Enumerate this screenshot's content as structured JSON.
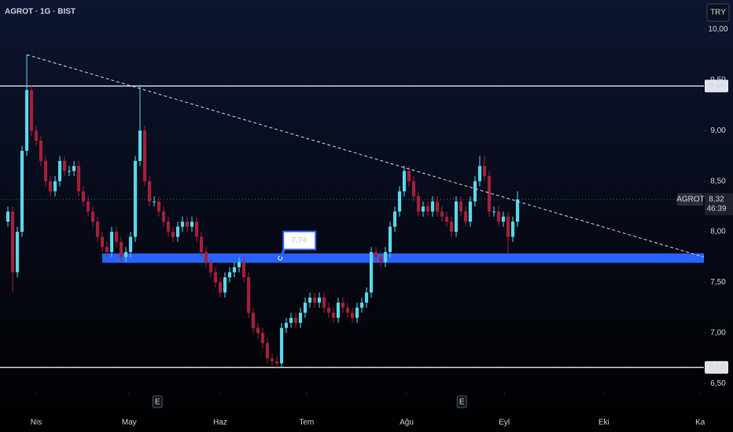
{
  "chart_data": {
    "type": "candlestick",
    "title": "AGROT · 1G · BIST",
    "currency": "TRY",
    "x": [
      0,
      1,
      2,
      3,
      4,
      5,
      6,
      7,
      8,
      9,
      10,
      11,
      12,
      13,
      14,
      15,
      16,
      17,
      18,
      19,
      20,
      21,
      22,
      23,
      24,
      25,
      26,
      27,
      28,
      29,
      30,
      31,
      32,
      33,
      34,
      35,
      36,
      37,
      38,
      39,
      40,
      41,
      42,
      43,
      44,
      45,
      46,
      47,
      48,
      49,
      50,
      51,
      52,
      53,
      54,
      55,
      56,
      57,
      58,
      59,
      60,
      61,
      62,
      63,
      64,
      65,
      66,
      67,
      68,
      69,
      70,
      71,
      72,
      73,
      74,
      75,
      76,
      77,
      78,
      79,
      80,
      81,
      82,
      83,
      84,
      85,
      86,
      87,
      88,
      89,
      90,
      91,
      92,
      93,
      94,
      95,
      96,
      97,
      98,
      99,
      100,
      101,
      102,
      103,
      104,
      105,
      106,
      107,
      108
    ],
    "open": [
      8.1,
      8.2,
      7.6,
      8.0,
      8.8,
      9.4,
      9.0,
      8.9,
      8.7,
      8.5,
      8.4,
      8.5,
      8.7,
      8.6,
      8.6,
      8.65,
      8.4,
      8.3,
      8.2,
      8.1,
      7.95,
      7.85,
      7.8,
      8.0,
      7.9,
      7.75,
      7.8,
      7.95,
      8.7,
      9.0,
      8.5,
      8.3,
      8.3,
      8.2,
      8.1,
      8.0,
      7.95,
      8.05,
      8.1,
      8.05,
      8.1,
      7.95,
      7.8,
      7.7,
      7.6,
      7.5,
      7.4,
      7.55,
      7.6,
      7.65,
      7.7,
      7.55,
      7.2,
      7.05,
      7.0,
      6.9,
      6.75,
      6.72,
      6.7,
      7.05,
      7.1,
      7.15,
      7.1,
      7.2,
      7.3,
      7.35,
      7.3,
      7.35,
      7.25,
      7.2,
      7.15,
      7.3,
      7.25,
      7.2,
      7.15,
      7.25,
      7.3,
      7.4,
      7.8,
      7.75,
      7.7,
      7.8,
      8.05,
      8.2,
      8.4,
      8.6,
      8.5,
      8.35,
      8.2,
      8.25,
      8.2,
      8.3,
      8.2,
      8.15,
      8.1,
      8.0,
      8.3,
      8.2,
      8.1,
      8.3,
      8.5,
      8.65,
      8.55,
      8.2,
      8.2,
      8.1,
      8.15,
      7.95,
      8.1
    ],
    "high": [
      8.25,
      8.25,
      8.05,
      8.85,
      9.75,
      9.45,
      9.05,
      8.95,
      8.75,
      8.55,
      8.55,
      8.75,
      8.75,
      8.65,
      8.7,
      8.7,
      8.45,
      8.35,
      8.25,
      8.15,
      8.0,
      7.9,
      8.05,
      8.05,
      7.95,
      7.85,
      8.0,
      8.75,
      9.45,
      9.05,
      8.55,
      8.35,
      8.35,
      8.25,
      8.15,
      8.05,
      8.1,
      8.15,
      8.15,
      8.15,
      8.15,
      8.0,
      7.85,
      7.75,
      7.65,
      7.55,
      7.6,
      7.65,
      7.7,
      7.75,
      7.75,
      7.6,
      7.25,
      7.1,
      7.05,
      6.95,
      6.8,
      6.77,
      7.1,
      7.15,
      7.2,
      7.2,
      7.25,
      7.35,
      7.4,
      7.4,
      7.4,
      7.4,
      7.3,
      7.25,
      7.35,
      7.35,
      7.3,
      7.25,
      7.3,
      7.35,
      7.45,
      7.85,
      7.85,
      7.8,
      7.85,
      8.1,
      8.25,
      8.45,
      8.65,
      8.65,
      8.55,
      8.4,
      8.3,
      8.3,
      8.35,
      8.35,
      8.25,
      8.2,
      8.15,
      8.35,
      8.35,
      8.25,
      8.35,
      8.55,
      8.75,
      8.75,
      8.6,
      8.25,
      8.25,
      8.2,
      8.2,
      8.15,
      8.4
    ],
    "low": [
      8.05,
      7.4,
      7.55,
      7.95,
      8.75,
      8.95,
      8.85,
      8.65,
      8.45,
      8.35,
      8.35,
      8.45,
      8.55,
      8.55,
      8.55,
      8.35,
      8.25,
      8.15,
      8.05,
      7.9,
      7.8,
      7.75,
      7.75,
      7.85,
      7.7,
      7.7,
      7.75,
      7.9,
      8.65,
      8.45,
      8.25,
      8.25,
      8.15,
      8.05,
      7.95,
      7.9,
      7.9,
      8.0,
      8.0,
      8.0,
      7.9,
      7.75,
      7.65,
      7.55,
      7.45,
      7.35,
      7.35,
      7.5,
      7.55,
      7.6,
      7.5,
      7.15,
      7.0,
      6.95,
      6.85,
      6.7,
      6.67,
      6.66,
      6.66,
      7.0,
      7.05,
      7.05,
      7.05,
      7.15,
      7.25,
      7.25,
      7.25,
      7.2,
      7.15,
      7.1,
      7.1,
      7.2,
      7.15,
      7.1,
      7.1,
      7.2,
      7.25,
      7.35,
      7.7,
      7.65,
      7.65,
      7.75,
      8.0,
      8.15,
      8.35,
      8.45,
      8.3,
      8.15,
      8.15,
      8.15,
      8.15,
      8.15,
      8.1,
      8.05,
      7.95,
      7.95,
      8.15,
      8.05,
      8.05,
      8.25,
      8.45,
      8.5,
      8.15,
      8.15,
      8.05,
      8.05,
      7.78,
      7.9,
      8.05
    ],
    "close": [
      8.2,
      7.6,
      8.0,
      8.8,
      9.4,
      9.0,
      8.9,
      8.7,
      8.5,
      8.4,
      8.5,
      8.7,
      8.6,
      8.6,
      8.65,
      8.4,
      8.3,
      8.2,
      8.1,
      7.95,
      7.85,
      7.8,
      8.0,
      7.9,
      7.75,
      7.8,
      7.95,
      8.7,
      9.0,
      8.5,
      8.3,
      8.3,
      8.2,
      8.1,
      8.0,
      7.95,
      8.05,
      8.1,
      8.05,
      8.1,
      7.95,
      7.8,
      7.7,
      7.6,
      7.5,
      7.4,
      7.55,
      7.6,
      7.65,
      7.7,
      7.55,
      7.2,
      7.05,
      7.0,
      6.9,
      6.75,
      6.72,
      6.7,
      7.05,
      7.1,
      7.15,
      7.1,
      7.2,
      7.3,
      7.35,
      7.3,
      7.35,
      7.25,
      7.2,
      7.15,
      7.3,
      7.25,
      7.2,
      7.15,
      7.25,
      7.3,
      7.4,
      7.8,
      7.75,
      7.7,
      7.8,
      8.05,
      8.2,
      8.4,
      8.6,
      8.5,
      8.35,
      8.2,
      8.25,
      8.2,
      8.3,
      8.2,
      8.15,
      8.1,
      8.0,
      8.3,
      8.2,
      8.1,
      8.3,
      8.5,
      8.65,
      8.55,
      8.2,
      8.2,
      8.1,
      8.15,
      7.95,
      8.1,
      8.32
    ],
    "up_color": "#5ad6e8",
    "down_color": "#a3203a",
    "xlim": [
      -1.67,
      147.5
    ],
    "xticks": [
      {
        "value": 6,
        "label": "Nis"
      },
      {
        "value": 25.7,
        "label": "May"
      },
      {
        "value": 45,
        "label": "Haz"
      },
      {
        "value": 63.3,
        "label": "Tem"
      },
      {
        "value": 84.5,
        "label": "Ağu"
      },
      {
        "value": 105.2,
        "label": "Eyl"
      },
      {
        "value": 126.3,
        "label": "Eki"
      },
      {
        "value": 146.7,
        "label": "Ka"
      }
    ],
    "ylim": [
      6.41,
      10.29
    ],
    "yticks": [
      {
        "value": 6.5,
        "label": "6,50"
      },
      {
        "value": 7,
        "label": "7,00"
      },
      {
        "value": 7.5,
        "label": "7,50"
      },
      {
        "value": 8,
        "label": "8,00"
      },
      {
        "value": 8.5,
        "label": "8,50"
      },
      {
        "value": 9,
        "label": "9,00"
      },
      {
        "value": 9.5,
        "label": "9,50"
      },
      {
        "value": 10,
        "label": "10,00"
      }
    ],
    "levels": [
      {
        "value": 9.44,
        "label": "9,44"
      },
      {
        "value": 6.66,
        "label": "6,66"
      }
    ],
    "trendline": {
      "x": [
        4,
        147.5
      ],
      "y": [
        9.75,
        7.75
      ]
    },
    "support": {
      "value": 7.74,
      "label": "7,74",
      "x": [
        20,
        147.5
      ],
      "anchor_x": 57.7,
      "color": "#2962ff"
    },
    "current": {
      "symbol": "AGROT",
      "value": 8.32,
      "label": "8,32",
      "countdown": "46:39"
    },
    "events": {
      "x": [
        31.7,
        96.2
      ],
      "label": "E"
    }
  }
}
